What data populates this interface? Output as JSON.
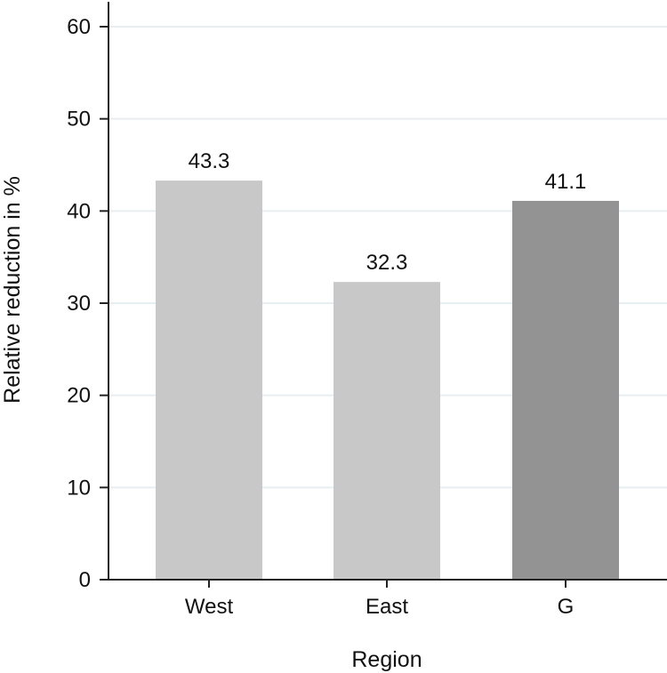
{
  "chart_data": {
    "type": "bar",
    "categories": [
      "West",
      "East",
      "G"
    ],
    "values": [
      43.3,
      32.3,
      41.1
    ],
    "value_labels": [
      "43.3",
      "32.3",
      "41.1"
    ],
    "bar_colors": [
      "#c8c8c8",
      "#c8c8c8",
      "#939393"
    ],
    "xlabel": "Region",
    "ylabel": "Relative reduction in %",
    "ylim": [
      0,
      60
    ],
    "yticks": [
      0,
      10,
      20,
      30,
      40,
      50,
      60
    ],
    "grid": true,
    "grid_color": "#e6eef1",
    "axis_color": "#222222"
  }
}
